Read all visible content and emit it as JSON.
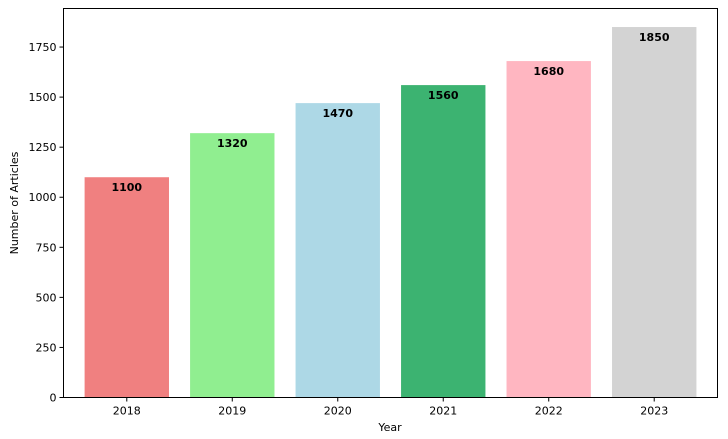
{
  "chart_data": {
    "type": "bar",
    "title": "",
    "xlabel": "Year",
    "ylabel": "Number of Articles",
    "categories": [
      "2018",
      "2019",
      "2020",
      "2021",
      "2022",
      "2023"
    ],
    "values": [
      1100,
      1320,
      1470,
      1560,
      1680,
      1850
    ],
    "data_labels": [
      "1100",
      "1320",
      "1470",
      "1560",
      "1680",
      "1850"
    ],
    "colors": [
      "#f08080",
      "#90ee90",
      "#add8e6",
      "#3cb371",
      "#ffb6c1",
      "#d3d3d3"
    ],
    "ylim": [
      0,
      1942.5
    ],
    "yticks": [
      0,
      250,
      500,
      750,
      1000,
      1250,
      1500,
      1750
    ],
    "ytick_labels": [
      "0",
      "250",
      "500",
      "750",
      "1000",
      "1250",
      "1500",
      "1750"
    ],
    "grid": false,
    "legend": "none"
  }
}
